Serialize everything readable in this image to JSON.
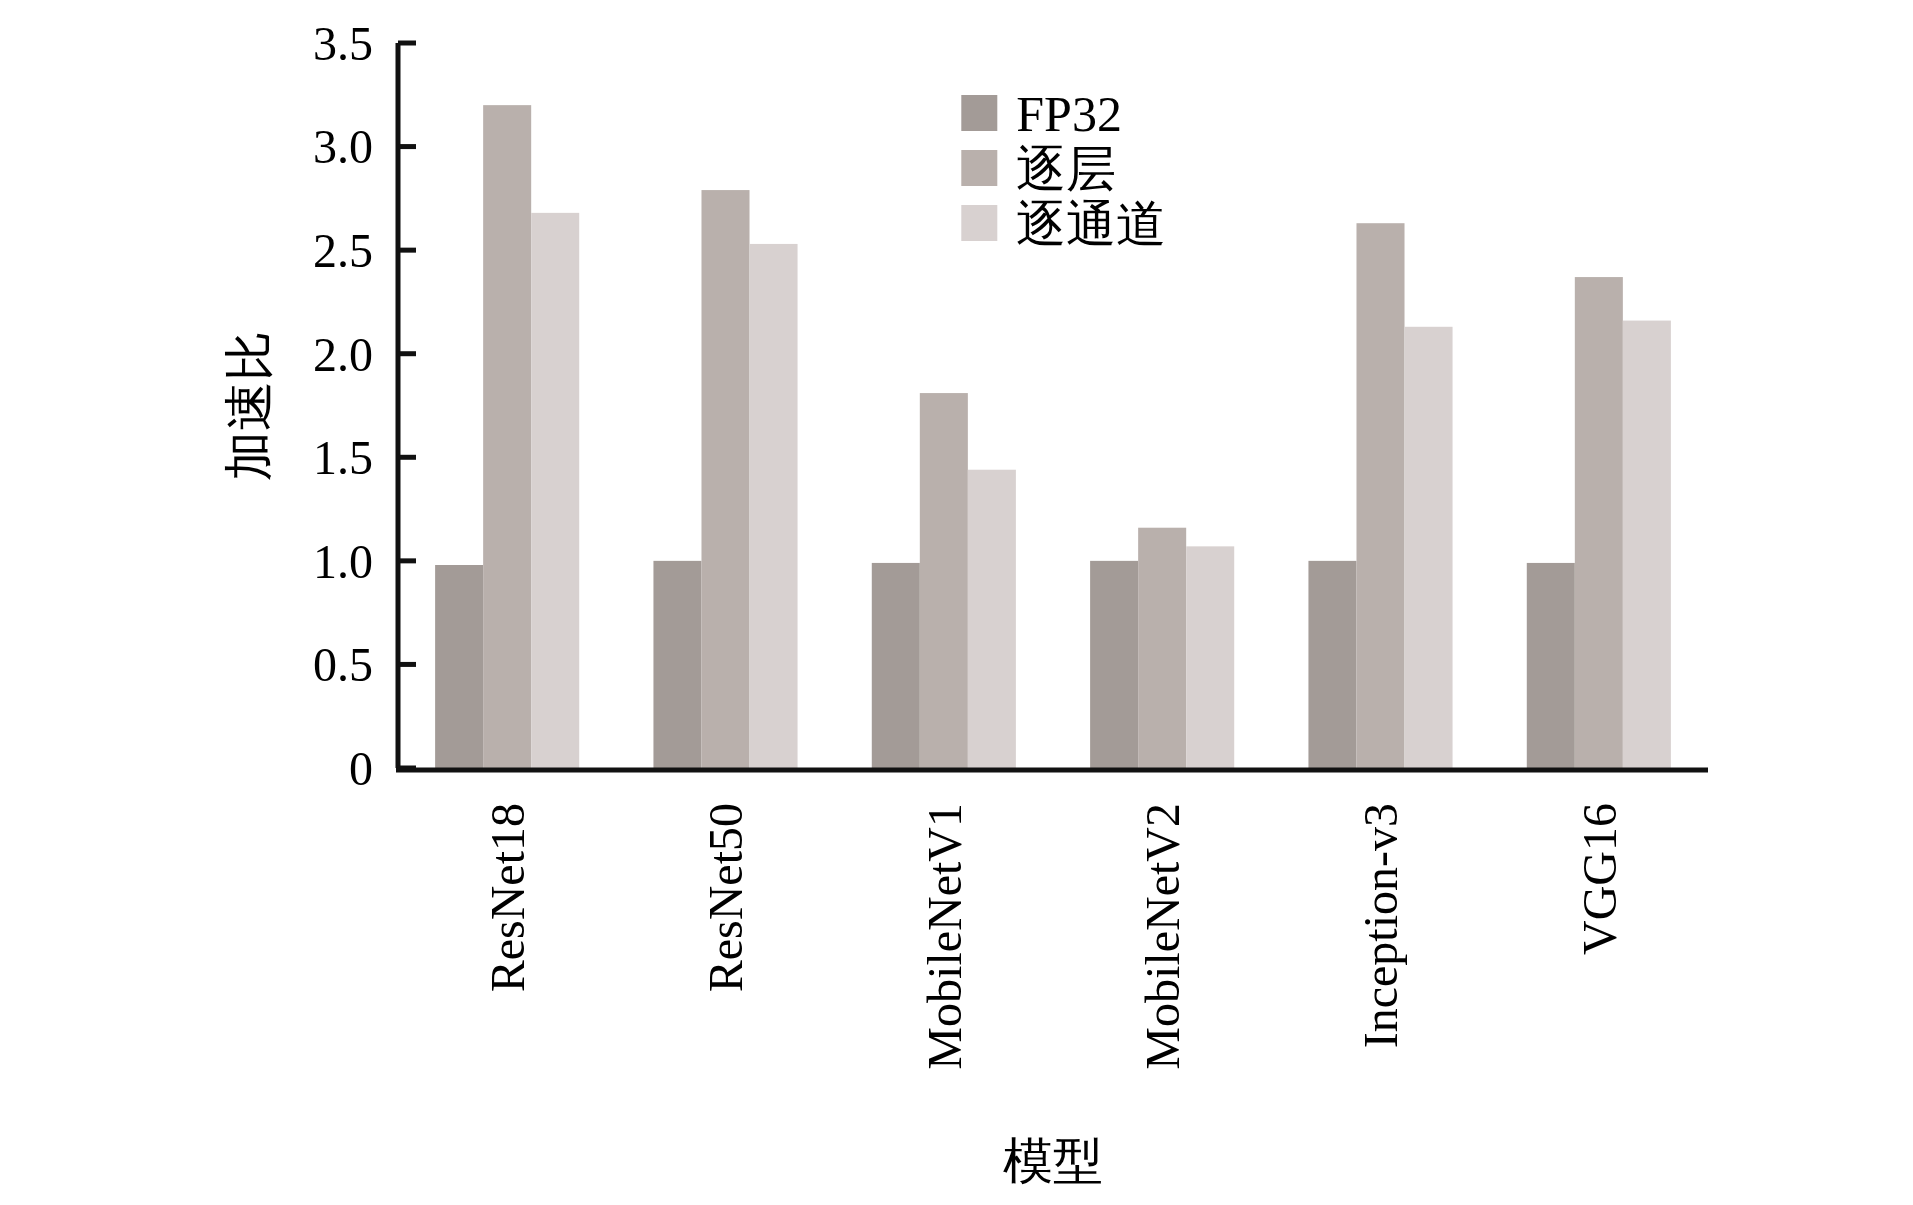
{
  "chart_data": {
    "type": "bar",
    "xlabel": "模型",
    "ylabel": "加速比",
    "categories": [
      "ResNet18",
      "ResNet50",
      "MobileNetV1",
      "MobileNetV2",
      "Inception-v3",
      "VGG16"
    ],
    "series": [
      {
        "name": "FP32",
        "color": "#a39b97",
        "values": [
          0.98,
          1.0,
          0.99,
          1.0,
          1.0,
          0.99
        ]
      },
      {
        "name": "逐层",
        "color": "#b9b0ac",
        "values": [
          3.2,
          2.79,
          1.81,
          1.16,
          2.63,
          2.37
        ]
      },
      {
        "name": "逐通道",
        "color": "#d8d1d0",
        "values": [
          2.68,
          2.53,
          1.44,
          1.07,
          2.13,
          2.16
        ]
      }
    ],
    "ylim": [
      0,
      3.5
    ],
    "yticks": [
      0,
      {
        "value": 0.5,
        "label": "0.5"
      },
      {
        "value": 1,
        "label": "1.0"
      },
      {
        "value": 1.5,
        "label": "1.5"
      },
      {
        "value": 2,
        "label": "2.0"
      },
      {
        "value": 2.5,
        "label": "2.5"
      },
      {
        "value": 3,
        "label": "3.0"
      },
      {
        "value": 3.5,
        "label": "3.5"
      }
    ],
    "grid": false,
    "legend": "top"
  }
}
